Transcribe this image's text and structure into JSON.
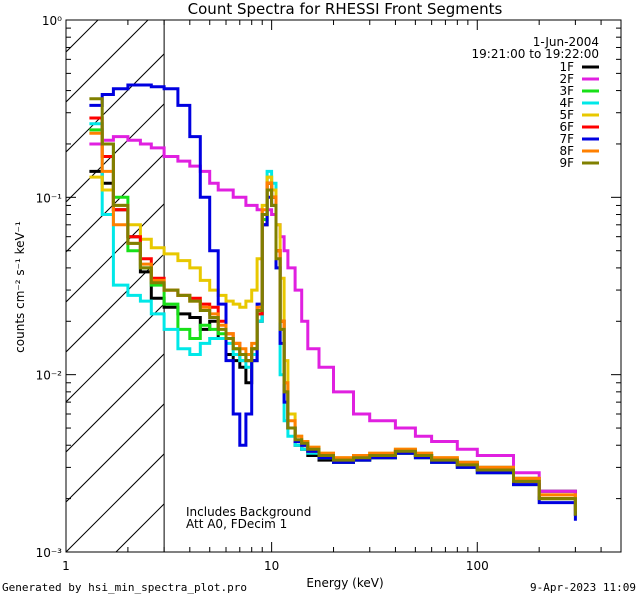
{
  "chart_data": {
    "type": "line",
    "title": "Count Spectra for RHESSI Front Segments",
    "xlabel": "Energy (keV)",
    "ylabel": "counts cm⁻² s⁻¹ keV⁻¹",
    "xscale": "log",
    "yscale": "log",
    "xlim": [
      1,
      500
    ],
    "ylim": [
      0.001,
      1
    ],
    "x_tick_labels": [
      "1",
      "10",
      "100"
    ],
    "y_tick_labels": [
      "10⁰",
      "10⁻¹",
      "10⁻²",
      "10⁻³"
    ],
    "date": "1-Jun-2004",
    "time_range": "19:21:00 to 19:22:00",
    "annotations": [
      "Includes Background",
      "Att A0, FDecim 1"
    ],
    "hatched_region": [
      1,
      3
    ],
    "series": [
      {
        "name": "1F",
        "color": "#000000",
        "x": [
          1.3,
          1.5,
          1.7,
          2.0,
          2.3,
          2.6,
          3.0,
          3.5,
          4.0,
          4.5,
          5.0,
          5.5,
          6.0,
          6.5,
          7.0,
          7.5,
          8.0,
          8.5,
          9.0,
          9.5,
          10.0,
          10.5,
          11.0,
          11.5,
          12.0,
          13.0,
          14.0,
          15.0,
          17.0,
          20.0,
          25.0,
          30.0,
          40.0,
          50.0,
          60.0,
          80.0,
          100.0,
          150.0,
          200.0,
          300.0
        ],
        "values": [
          0.14,
          0.12,
          0.085,
          0.06,
          0.038,
          0.027,
          0.024,
          0.022,
          0.021,
          0.018,
          0.02,
          0.016,
          0.013,
          0.012,
          0.011,
          0.009,
          0.012,
          0.02,
          0.07,
          0.12,
          0.1,
          0.05,
          0.02,
          0.008,
          0.005,
          0.004,
          0.0038,
          0.0035,
          0.0033,
          0.0032,
          0.0033,
          0.0034,
          0.0036,
          0.0035,
          0.0033,
          0.0032,
          0.003,
          0.0026,
          0.0022,
          0.0018
        ]
      },
      {
        "name": "2F",
        "color": "#e020e0",
        "x": [
          1.3,
          1.5,
          1.7,
          2.0,
          2.3,
          2.6,
          3.0,
          3.5,
          4.0,
          4.5,
          5.0,
          5.5,
          6.0,
          6.5,
          7.0,
          7.5,
          8.0,
          8.5,
          9.0,
          9.5,
          10.0,
          10.5,
          11.0,
          11.5,
          12.0,
          13.0,
          14.0,
          15.0,
          17.0,
          20.0,
          25.0,
          30.0,
          40.0,
          50.0,
          60.0,
          80.0,
          100.0,
          150.0,
          200.0,
          300.0
        ],
        "values": [
          0.2,
          0.21,
          0.22,
          0.21,
          0.2,
          0.19,
          0.17,
          0.16,
          0.15,
          0.14,
          0.12,
          0.11,
          0.11,
          0.1,
          0.1,
          0.09,
          0.09,
          0.085,
          0.08,
          0.085,
          0.08,
          0.07,
          0.06,
          0.05,
          0.04,
          0.03,
          0.02,
          0.014,
          0.011,
          0.008,
          0.006,
          0.0055,
          0.005,
          0.0045,
          0.0042,
          0.0038,
          0.0035,
          0.0028,
          0.0022,
          0.0016
        ]
      },
      {
        "name": "3F",
        "color": "#18e018",
        "x": [
          1.3,
          1.5,
          1.7,
          2.0,
          2.3,
          2.6,
          3.0,
          3.5,
          4.0,
          4.5,
          5.0,
          5.5,
          6.0,
          6.5,
          7.0,
          7.5,
          8.0,
          8.5,
          9.0,
          9.5,
          10.0,
          10.5,
          11.0,
          11.5,
          12.0,
          13.0,
          14.0,
          15.0,
          17.0,
          20.0,
          25.0,
          30.0,
          40.0,
          50.0,
          60.0,
          80.0,
          100.0,
          150.0,
          200.0,
          300.0
        ],
        "values": [
          0.24,
          0.2,
          0.1,
          0.05,
          0.04,
          0.032,
          0.025,
          0.018,
          0.016,
          0.019,
          0.018,
          0.017,
          0.016,
          0.014,
          0.012,
          0.012,
          0.014,
          0.022,
          0.075,
          0.13,
          0.1,
          0.05,
          0.02,
          0.009,
          0.005,
          0.0042,
          0.004,
          0.0037,
          0.0034,
          0.0032,
          0.0033,
          0.0034,
          0.0036,
          0.0034,
          0.0032,
          0.003,
          0.0028,
          0.0024,
          0.002,
          0.0016
        ]
      },
      {
        "name": "4F",
        "color": "#00e8e8",
        "x": [
          1.3,
          1.5,
          1.7,
          2.0,
          2.3,
          2.6,
          3.0,
          3.5,
          4.0,
          4.5,
          5.0,
          5.5,
          6.0,
          6.5,
          7.0,
          7.5,
          8.0,
          8.5,
          9.0,
          9.5,
          10.0,
          10.5,
          11.0,
          11.5,
          12.0,
          13.0,
          14.0,
          15.0,
          17.0,
          20.0,
          25.0,
          30.0,
          40.0,
          50.0,
          60.0,
          80.0,
          100.0,
          150.0,
          200.0,
          300.0
        ],
        "values": [
          0.26,
          0.08,
          0.032,
          0.028,
          0.026,
          0.022,
          0.018,
          0.014,
          0.013,
          0.015,
          0.016,
          0.016,
          0.015,
          0.013,
          0.012,
          0.011,
          0.013,
          0.02,
          0.08,
          0.14,
          0.12,
          0.04,
          0.01,
          0.0055,
          0.0045,
          0.004,
          0.0038,
          0.0036,
          0.0034,
          0.0033,
          0.0034,
          0.0035,
          0.0037,
          0.0035,
          0.0033,
          0.0031,
          0.0029,
          0.0025,
          0.002,
          0.0016
        ]
      },
      {
        "name": "5F",
        "color": "#e8c800",
        "x": [
          1.3,
          1.5,
          1.7,
          2.0,
          2.3,
          2.6,
          3.0,
          3.5,
          4.0,
          4.5,
          5.0,
          5.5,
          6.0,
          6.5,
          7.0,
          7.5,
          8.0,
          8.5,
          9.0,
          9.5,
          10.0,
          10.5,
          11.0,
          11.5,
          12.0,
          13.0,
          14.0,
          15.0,
          17.0,
          20.0,
          25.0,
          30.0,
          40.0,
          50.0,
          60.0,
          80.0,
          100.0,
          150.0,
          200.0,
          300.0
        ],
        "values": [
          0.13,
          0.11,
          0.09,
          0.07,
          0.058,
          0.052,
          0.048,
          0.044,
          0.04,
          0.034,
          0.03,
          0.028,
          0.026,
          0.025,
          0.024,
          0.026,
          0.03,
          0.045,
          0.09,
          0.13,
          0.11,
          0.07,
          0.035,
          0.012,
          0.006,
          0.0045,
          0.0042,
          0.0039,
          0.0036,
          0.0034,
          0.0035,
          0.0036,
          0.0038,
          0.0036,
          0.0034,
          0.0032,
          0.003,
          0.0026,
          0.0021,
          0.0017
        ]
      },
      {
        "name": "6F",
        "color": "#ff0000",
        "x": [
          1.3,
          1.5,
          1.7,
          2.0,
          2.3,
          2.6,
          3.0,
          3.5,
          4.0,
          4.5,
          5.0,
          5.5,
          6.0,
          6.5,
          7.0,
          7.5,
          8.0,
          8.5,
          9.0,
          9.5,
          10.0,
          10.5,
          11.0,
          11.5,
          12.0,
          13.0,
          14.0,
          15.0,
          17.0,
          20.0,
          25.0,
          30.0,
          40.0,
          50.0,
          60.0,
          80.0,
          100.0,
          150.0,
          200.0,
          300.0
        ],
        "values": [
          0.28,
          0.17,
          0.085,
          0.06,
          0.045,
          0.035,
          0.03,
          0.028,
          0.027,
          0.025,
          0.024,
          0.02,
          0.017,
          0.015,
          0.013,
          0.012,
          0.014,
          0.022,
          0.08,
          0.12,
          0.1,
          0.05,
          0.02,
          0.008,
          0.005,
          0.0042,
          0.004,
          0.0037,
          0.0035,
          0.0033,
          0.0034,
          0.0035,
          0.0037,
          0.0035,
          0.0033,
          0.0031,
          0.0029,
          0.0025,
          0.002,
          0.0016
        ]
      },
      {
        "name": "7F",
        "color": "#0000e0",
        "x": [
          1.3,
          1.5,
          1.7,
          2.0,
          2.3,
          2.6,
          3.0,
          3.5,
          4.0,
          4.5,
          5.0,
          5.5,
          6.0,
          6.5,
          7.0,
          7.5,
          8.0,
          8.5,
          9.0,
          9.5,
          10.0,
          10.5,
          11.0,
          11.5,
          12.0,
          13.0,
          14.0,
          15.0,
          17.0,
          20.0,
          25.0,
          30.0,
          40.0,
          50.0,
          60.0,
          80.0,
          100.0,
          150.0,
          200.0,
          300.0
        ],
        "values": [
          0.33,
          0.38,
          0.41,
          0.43,
          0.43,
          0.42,
          0.41,
          0.33,
          0.22,
          0.1,
          0.05,
          0.025,
          0.012,
          0.006,
          0.004,
          0.006,
          0.012,
          0.025,
          0.07,
          0.1,
          0.09,
          0.04,
          0.015,
          0.007,
          0.005,
          0.0042,
          0.004,
          0.0037,
          0.0034,
          0.0032,
          0.0033,
          0.0034,
          0.0036,
          0.0034,
          0.0032,
          0.003,
          0.0028,
          0.0024,
          0.0019,
          0.0015
        ]
      },
      {
        "name": "8F",
        "color": "#ff8000",
        "x": [
          1.3,
          1.5,
          1.7,
          2.0,
          2.3,
          2.6,
          3.0,
          3.5,
          4.0,
          4.5,
          5.0,
          5.5,
          6.0,
          6.5,
          7.0,
          7.5,
          8.0,
          8.5,
          9.0,
          9.5,
          10.0,
          10.5,
          11.0,
          11.5,
          12.0,
          13.0,
          14.0,
          15.0,
          17.0,
          20.0,
          25.0,
          30.0,
          40.0,
          50.0,
          60.0,
          80.0,
          100.0,
          150.0,
          200.0,
          300.0
        ],
        "values": [
          0.23,
          0.14,
          0.07,
          0.055,
          0.042,
          0.034,
          0.03,
          0.028,
          0.026,
          0.024,
          0.022,
          0.019,
          0.017,
          0.015,
          0.014,
          0.013,
          0.015,
          0.024,
          0.085,
          0.12,
          0.1,
          0.05,
          0.02,
          0.009,
          0.0055,
          0.0045,
          0.0042,
          0.0039,
          0.0036,
          0.0034,
          0.0035,
          0.0036,
          0.0038,
          0.0036,
          0.0034,
          0.0032,
          0.003,
          0.0026,
          0.0021,
          0.0017
        ]
      },
      {
        "name": "9F",
        "color": "#808000",
        "x": [
          1.3,
          1.5,
          1.7,
          2.0,
          2.3,
          2.6,
          3.0,
          3.5,
          4.0,
          4.5,
          5.0,
          5.5,
          6.0,
          6.5,
          7.0,
          7.5,
          8.0,
          8.5,
          9.0,
          9.5,
          10.0,
          10.5,
          11.0,
          11.5,
          12.0,
          13.0,
          14.0,
          15.0,
          17.0,
          20.0,
          25.0,
          30.0,
          40.0,
          50.0,
          60.0,
          80.0,
          100.0,
          150.0,
          200.0,
          300.0
        ],
        "values": [
          0.36,
          0.2,
          0.09,
          0.055,
          0.04,
          0.033,
          0.03,
          0.028,
          0.026,
          0.023,
          0.021,
          0.018,
          0.016,
          0.014,
          0.013,
          0.012,
          0.014,
          0.023,
          0.08,
          0.11,
          0.09,
          0.045,
          0.018,
          0.008,
          0.005,
          0.0043,
          0.0041,
          0.0038,
          0.0035,
          0.0033,
          0.0034,
          0.0035,
          0.0037,
          0.0035,
          0.0033,
          0.0031,
          0.0029,
          0.0025,
          0.002,
          0.0016
        ]
      }
    ]
  },
  "footer": {
    "generated_by": "Generated by hsi_min_spectra_plot.pro",
    "date_stamp": "9-Apr-2023 11:09"
  }
}
